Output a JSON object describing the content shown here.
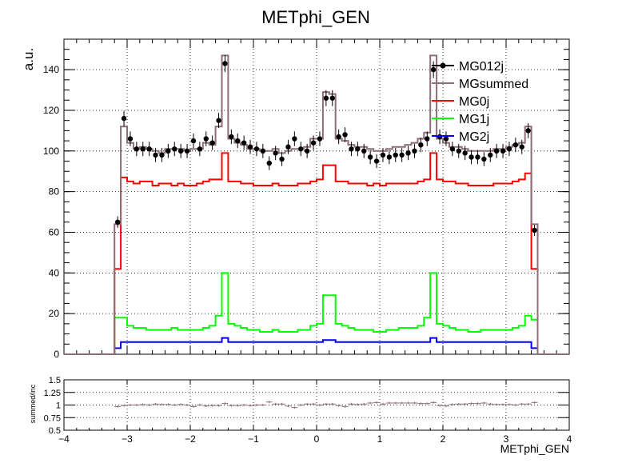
{
  "chart_data": {
    "type": "line",
    "title": "METphi_GEN",
    "xlabel": "METphi_GEN",
    "ylabel": "a.u.",
    "xlim": [
      -4,
      4
    ],
    "ylim": [
      0,
      155
    ],
    "grid": true,
    "legend_position": "top-right",
    "x_ticks": [
      "−4",
      "−3",
      "−2",
      "−1",
      "0",
      "1",
      "2",
      "3",
      "4"
    ],
    "y_ticks": [
      "0",
      "20",
      "40",
      "60",
      "80",
      "100",
      "120",
      "140"
    ],
    "legend": [
      {
        "label": "MG012j",
        "color": "#000000",
        "style": "marker"
      },
      {
        "label": "MGsummed",
        "color": "#8c6e75",
        "style": "line"
      },
      {
        "label": "MG0j",
        "color": "#ff0000",
        "style": "line"
      },
      {
        "label": "MG1j",
        "color": "#00ff00",
        "style": "line"
      },
      {
        "label": "MG2j",
        "color": "#0000ff",
        "style": "line"
      }
    ],
    "bin_edges_start": -3.2,
    "bin_width": 0.1,
    "series": [
      {
        "name": "MG012j",
        "kind": "points",
        "color": "#000000",
        "values": [
          65,
          116,
          106,
          101,
          101,
          101,
          98,
          98,
          100,
          101,
          100,
          100,
          105,
          101,
          106,
          104,
          115,
          143,
          107,
          105,
          104,
          102,
          101,
          100,
          94,
          99,
          96,
          102,
          106,
          101,
          100,
          104,
          106,
          126,
          126,
          107,
          108,
          101,
          101,
          100,
          97,
          95,
          98,
          97,
          98,
          98,
          99,
          100,
          103,
          106,
          140,
          107,
          106,
          101,
          100,
          99,
          97,
          97,
          96,
          98,
          100,
          100,
          101,
          103,
          102,
          110,
          61
        ]
      },
      {
        "name": "MGsummed",
        "kind": "step",
        "color": "#8c6e75",
        "values": [
          64,
          112,
          104,
          101,
          102,
          101,
          100,
          99,
          101,
          101,
          101,
          100,
          101,
          101,
          104,
          103,
          112,
          147,
          106,
          104,
          103,
          101,
          101,
          100,
          100,
          101,
          99,
          100,
          101,
          101,
          102,
          106,
          106,
          129,
          128,
          106,
          105,
          103,
          102,
          102,
          101,
          100,
          100,
          101,
          102,
          102,
          103,
          104,
          106,
          109,
          147,
          106,
          104,
          102,
          102,
          101,
          100,
          100,
          100,
          100,
          101,
          101,
          102,
          103,
          104,
          112,
          64
        ]
      },
      {
        "name": "MG0j",
        "kind": "step",
        "color": "#ff0000",
        "values": [
          42,
          87,
          85,
          84,
          85,
          85,
          83,
          84,
          84,
          83,
          84,
          83,
          83,
          84,
          85,
          86,
          86,
          99,
          85,
          85,
          84,
          84,
          83,
          83,
          83,
          84,
          83,
          83,
          83,
          84,
          84,
          85,
          86,
          93,
          93,
          85,
          85,
          84,
          84,
          84,
          83,
          84,
          83,
          84,
          84,
          84,
          84,
          84,
          85,
          86,
          99,
          86,
          85,
          85,
          84,
          84,
          83,
          83,
          83,
          83,
          84,
          84,
          84,
          85,
          86,
          89,
          42
        ]
      },
      {
        "name": "MG1j",
        "kind": "step",
        "color": "#00ff00",
        "values": [
          18,
          18,
          14,
          13,
          13,
          12,
          12,
          12,
          12,
          13,
          12,
          12,
          12,
          12,
          13,
          14,
          19,
          40,
          15,
          14,
          13,
          12,
          12,
          11,
          11,
          12,
          11,
          11,
          11,
          12,
          12,
          14,
          15,
          29,
          29,
          15,
          14,
          13,
          12,
          12,
          12,
          11,
          11,
          12,
          12,
          13,
          13,
          13,
          14,
          18,
          40,
          15,
          14,
          13,
          12,
          12,
          11,
          11,
          12,
          12,
          12,
          12,
          12,
          13,
          14,
          19,
          17
        ]
      },
      {
        "name": "MG2j",
        "kind": "step",
        "color": "#0000ff",
        "values": [
          3,
          6,
          6,
          6,
          6,
          6,
          6,
          6,
          6,
          6,
          6,
          6,
          6,
          6,
          6,
          6,
          6,
          8,
          6,
          6,
          6,
          6,
          6,
          6,
          6,
          6,
          6,
          6,
          6,
          6,
          6,
          6,
          6,
          7,
          7,
          6,
          6,
          6,
          6,
          6,
          6,
          6,
          6,
          6,
          6,
          6,
          6,
          6,
          6,
          6,
          8,
          6,
          6,
          6,
          6,
          6,
          6,
          6,
          6,
          6,
          6,
          6,
          6,
          6,
          6,
          6,
          3
        ]
      }
    ],
    "ratio": {
      "ylabel": "summed/inc",
      "ylim": [
        0.5,
        1.5
      ],
      "y_ticks": [
        "0.5",
        "0.75",
        "1",
        "1.25",
        "1.5"
      ],
      "values": [
        0.97,
        0.99,
        1.0,
        1.0,
        1.01,
        1.0,
        1.02,
        1.01,
        1.01,
        1.0,
        1.01,
        1.0,
        0.97,
        1.0,
        0.98,
        0.99,
        0.99,
        1.03,
        0.99,
        0.99,
        1.0,
        0.99,
        1.0,
        1.0,
        1.06,
        1.02,
        1.02,
        0.98,
        0.95,
        1.0,
        1.02,
        1.02,
        1.0,
        1.02,
        1.02,
        0.99,
        0.97,
        1.02,
        1.01,
        1.02,
        1.04,
        1.05,
        1.02,
        1.04,
        1.04,
        1.04,
        1.04,
        1.04,
        1.03,
        1.03,
        1.05,
        0.99,
        0.98,
        1.01,
        1.02,
        1.02,
        1.03,
        1.03,
        1.04,
        1.02,
        1.01,
        1.01,
        1.01,
        1.0,
        1.02,
        1.02,
        1.05
      ]
    }
  }
}
